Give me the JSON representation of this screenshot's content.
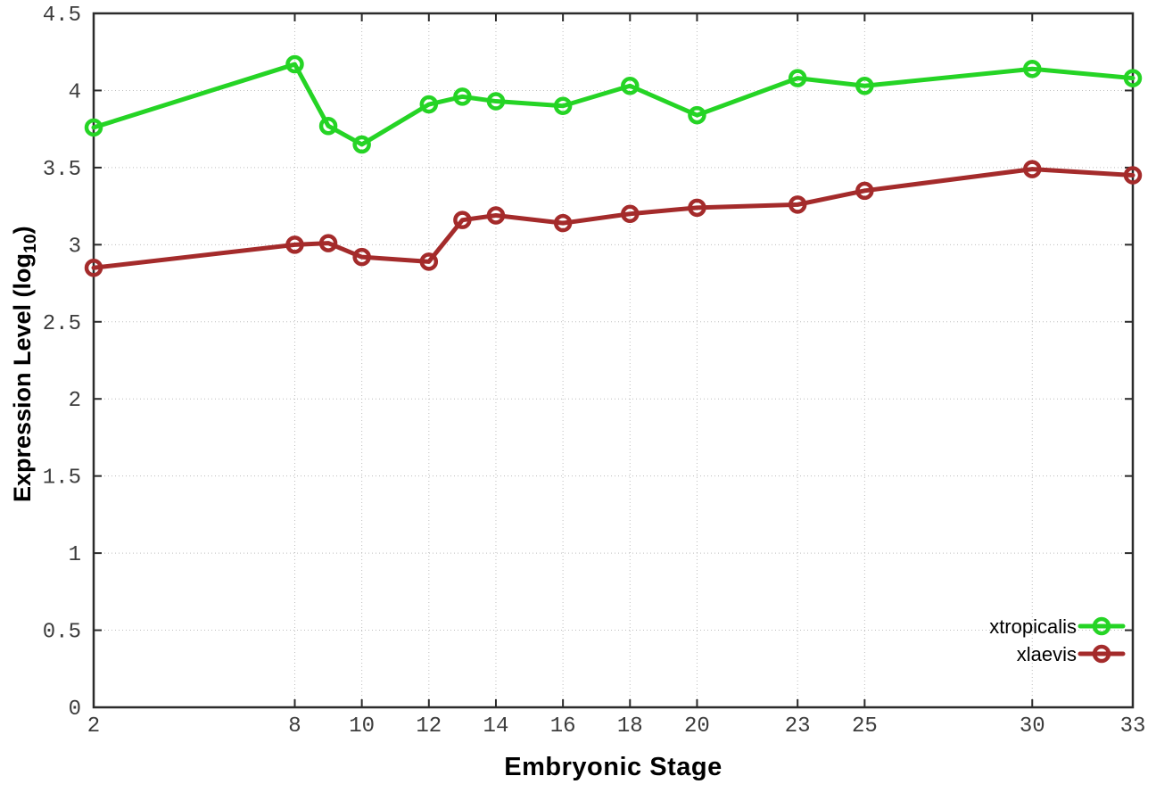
{
  "chart_data": {
    "type": "line",
    "title": "",
    "xlabel": "Embryonic Stage",
    "ylabel": {
      "main": "Expression Level (log",
      "sub": "10",
      "close": ")"
    },
    "xlim": [
      2,
      33
    ],
    "ylim": [
      0,
      4.5
    ],
    "x_ticks": [
      2,
      8,
      10,
      12,
      14,
      16,
      18,
      20,
      23,
      25,
      30,
      33
    ],
    "y_ticks": [
      0,
      0.5,
      1,
      1.5,
      2,
      2.5,
      3,
      3.5,
      4,
      4.5
    ],
    "grid": true,
    "legend_position": "bottom-right",
    "x": [
      2,
      8,
      9,
      10,
      12,
      13,
      14,
      16,
      18,
      20,
      23,
      25,
      30,
      33
    ],
    "series": [
      {
        "name": "xtropicalis",
        "color": "#25d425",
        "values": [
          3.76,
          4.17,
          3.77,
          3.65,
          3.91,
          3.96,
          3.93,
          3.9,
          4.03,
          3.84,
          4.08,
          4.03,
          4.14,
          4.08
        ]
      },
      {
        "name": "xlaevis",
        "color": "#a42b2b",
        "values": [
          2.85,
          3.0,
          3.01,
          2.92,
          2.89,
          3.16,
          3.19,
          3.14,
          3.2,
          3.24,
          3.26,
          3.35,
          3.49,
          3.45
        ]
      }
    ]
  },
  "style": {
    "border_color": "#2b2b2b",
    "grid_color": "#bdbdbd",
    "tick_label_color": "#3c3c3c",
    "background": "#ffffff"
  }
}
